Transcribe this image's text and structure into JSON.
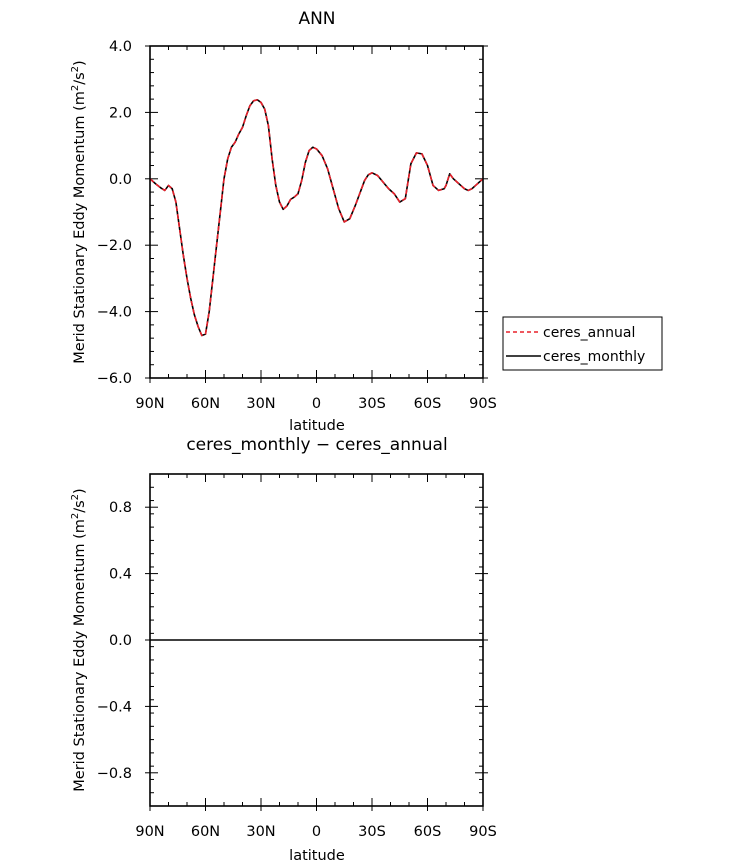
{
  "chart_data": [
    {
      "type": "line",
      "title": "ANN",
      "xlabel": "latitude",
      "ylabel": "Merid Stationary Eddy Momentum (m²/s²)",
      "ylabel_parts": [
        "Merid Stationary Eddy Momentum  (m",
        "2",
        "/s",
        "2",
        ")"
      ],
      "xlim": [
        90,
        -90
      ],
      "ylim": [
        -6.0,
        4.0
      ],
      "x_ticks": [
        {
          "value": 90,
          "label": "90N"
        },
        {
          "value": 60,
          "label": "60N"
        },
        {
          "value": 30,
          "label": "30N"
        },
        {
          "value": 0,
          "label": "0"
        },
        {
          "value": -30,
          "label": "30S"
        },
        {
          "value": -60,
          "label": "60S"
        },
        {
          "value": -90,
          "label": "90S"
        }
      ],
      "y_ticks": [
        {
          "value": 4.0,
          "label": "4.0"
        },
        {
          "value": 2.0,
          "label": "2.0"
        },
        {
          "value": 0.0,
          "label": "0.0"
        },
        {
          "value": -2.0,
          "label": "−2.0"
        },
        {
          "value": -4.0,
          "label": "−4.0"
        },
        {
          "value": -6.0,
          "label": "−6.0"
        }
      ],
      "legend": {
        "placement": "right",
        "entries": [
          {
            "name": "ceres_annual",
            "color": "#e8202a",
            "dash": "dashed"
          },
          {
            "name": "ceres_monthly",
            "color": "#000000",
            "dash": "solid"
          }
        ]
      },
      "x": [
        90,
        87,
        84,
        82,
        80,
        78,
        76,
        74,
        72,
        70,
        68,
        66,
        64,
        62,
        60,
        58,
        56,
        54,
        52,
        50,
        48,
        46,
        44,
        42,
        40,
        38,
        36,
        34,
        32,
        30,
        28,
        26,
        24,
        22,
        20,
        18,
        16,
        14,
        12,
        10,
        8,
        6,
        4,
        2,
        0,
        -3,
        -6,
        -9,
        -12,
        -15,
        -18,
        -21,
        -24,
        -26,
        -28,
        -30,
        -33,
        -36,
        -39,
        -42,
        -45,
        -48,
        -51,
        -54,
        -57,
        -60,
        -63,
        -66,
        -69,
        -70,
        -72,
        -74,
        -75,
        -76,
        -78,
        -80,
        -82,
        -84,
        -86,
        -88,
        -90
      ],
      "series": [
        {
          "name": "ceres_annual",
          "color": "#e8202a",
          "dash": "dashed",
          "values": [
            0.0,
            -0.15,
            -0.28,
            -0.35,
            -0.2,
            -0.3,
            -0.7,
            -1.5,
            -2.3,
            -3.0,
            -3.6,
            -4.1,
            -4.45,
            -4.72,
            -4.68,
            -4.0,
            -3.0,
            -2.0,
            -1.0,
            0.0,
            0.6,
            0.95,
            1.1,
            1.35,
            1.55,
            1.9,
            2.2,
            2.35,
            2.38,
            2.3,
            2.1,
            1.6,
            0.6,
            -0.2,
            -0.7,
            -0.92,
            -0.82,
            -0.62,
            -0.55,
            -0.45,
            -0.05,
            0.5,
            0.85,
            0.95,
            0.9,
            0.7,
            0.3,
            -0.3,
            -0.9,
            -1.3,
            -1.2,
            -0.8,
            -0.35,
            -0.05,
            0.12,
            0.18,
            0.1,
            -0.1,
            -0.3,
            -0.45,
            -0.7,
            -0.6,
            0.45,
            0.78,
            0.75,
            0.4,
            -0.2,
            -0.35,
            -0.3,
            -0.2,
            0.15,
            0.0,
            -0.05,
            -0.1,
            -0.2,
            -0.3,
            -0.35,
            -0.3,
            -0.2,
            -0.1,
            0.0
          ]
        },
        {
          "name": "ceres_monthly",
          "color": "#000000",
          "dash": "solid",
          "values": [
            0.0,
            -0.15,
            -0.28,
            -0.35,
            -0.2,
            -0.3,
            -0.7,
            -1.5,
            -2.3,
            -3.0,
            -3.6,
            -4.1,
            -4.45,
            -4.72,
            -4.68,
            -4.0,
            -3.0,
            -2.0,
            -1.0,
            0.0,
            0.6,
            0.95,
            1.1,
            1.35,
            1.55,
            1.9,
            2.2,
            2.35,
            2.38,
            2.3,
            2.1,
            1.6,
            0.6,
            -0.2,
            -0.7,
            -0.92,
            -0.82,
            -0.62,
            -0.55,
            -0.45,
            -0.05,
            0.5,
            0.85,
            0.95,
            0.9,
            0.7,
            0.3,
            -0.3,
            -0.9,
            -1.3,
            -1.2,
            -0.8,
            -0.35,
            -0.05,
            0.12,
            0.18,
            0.1,
            -0.1,
            -0.3,
            -0.45,
            -0.7,
            -0.6,
            0.45,
            0.78,
            0.75,
            0.4,
            -0.2,
            -0.35,
            -0.3,
            -0.2,
            0.15,
            0.0,
            -0.05,
            -0.1,
            -0.2,
            -0.3,
            -0.35,
            -0.3,
            -0.2,
            -0.1,
            0.0
          ]
        }
      ]
    },
    {
      "type": "line",
      "title": "ceres_monthly − ceres_annual",
      "xlabel": "latitude",
      "ylabel": "Merid Stationary Eddy Momentum (m²/s²)",
      "ylabel_parts": [
        "Merid Stationary Eddy Momentum  (m",
        "2",
        "/s",
        "2",
        ")"
      ],
      "xlim": [
        90,
        -90
      ],
      "ylim": [
        -1.0,
        1.0
      ],
      "x_ticks": [
        {
          "value": 90,
          "label": "90N"
        },
        {
          "value": 60,
          "label": "60N"
        },
        {
          "value": 30,
          "label": "30N"
        },
        {
          "value": 0,
          "label": "0"
        },
        {
          "value": -30,
          "label": "30S"
        },
        {
          "value": -60,
          "label": "60S"
        },
        {
          "value": -90,
          "label": "90S"
        }
      ],
      "y_ticks": [
        {
          "value": 0.8,
          "label": "0.8"
        },
        {
          "value": 0.4,
          "label": "0.4"
        },
        {
          "value": 0.0,
          "label": "0.0"
        },
        {
          "value": -0.4,
          "label": "−0.4"
        },
        {
          "value": -0.8,
          "label": "−0.8"
        }
      ],
      "x": [
        90,
        -90
      ],
      "series": [
        {
          "color": "#000000",
          "dash": "solid",
          "values": [
            0.0,
            0.0
          ]
        }
      ]
    }
  ]
}
